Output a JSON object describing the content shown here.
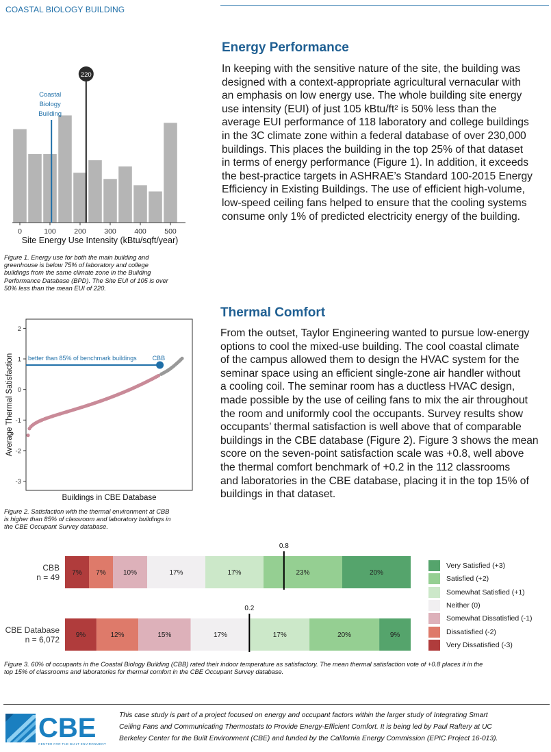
{
  "header": {
    "label": "COASTAL BIOLOGY BUILDING"
  },
  "sections": {
    "energy": {
      "heading": "Energy Performance",
      "lines": [
        "In keeping with the sensitive nature of the site, the building was",
        "designed with a context-appropriate agricultural vernacular with",
        "an emphasis on low energy use. The whole building site energy",
        "use intensity (EUI) of just 105 kBtu/ft² is 50% less than the",
        "average EUI performance of 118 laboratory and college buildings",
        "in the 3C climate zone within a federal database of over 230,000",
        "buildings. This places the building in the top 25% of that dataset",
        "in terms of energy performance (Figure 1). In addition, it exceeds",
        "the best-practice targets in ASHRAE’s Standard 100-2015 Energy",
        "Efficiency in Existing Buildings. The use of efficient high-volume,",
        "low-speed ceiling fans helped to ensure that the cooling systems",
        "consume only 1% of predicted electricity energy of the building."
      ]
    },
    "thermal": {
      "heading": "Thermal Comfort",
      "lines": [
        "From the outset, Taylor Engineering wanted to pursue low-energy",
        "options to cool the mixed-use building. The cool coastal climate",
        "of the campus allowed them to design the HVAC system for the",
        "seminar space using an efficient single-zone air handler without",
        "a cooling coil. The seminar room has a ductless HVAC design,",
        "made possible by the use of ceiling fans to mix the air throughout",
        "the room and uniformly cool the occupants. Survey results show",
        "occupants’ thermal satisfaction is well above that of comparable",
        "buildings in the CBE database (Figure 2). Figure 3 shows the mean",
        "score on the seven-point satisfaction scale was +0.8, well above",
        "the thermal comfort benchmark of +0.2 in the 112 classrooms",
        "and laboratories in the CBE database, placing it in the top 15% of",
        "buildings in that dataset."
      ]
    }
  },
  "captions": {
    "fig1": [
      "Figure 1. Energy use for both the main building and",
      "greenhouse is below 75% of laboratory and college",
      "buildings from the same climate zone in the Building",
      "Performance Database (BPD). The Site EUI of 105 is over",
      "50% less than the mean EUI of 220."
    ],
    "fig2": [
      "Figure 2. Satisfaction with the thermal environment at CBB",
      "is higher than 85% of classroom and laboratory buildings in",
      "the CBE Occupant Survey database."
    ],
    "fig3": [
      "Figure 3. 60% of occupants in the Coastal Biology Building (CBB) rated their indoor temperature as satisfactory. The mean thermal satisfaction vote of +0.8 places it in the",
      "top 15% of classrooms and laboratories for thermal comfort in the CBE Occupant Survey database."
    ]
  },
  "footer": {
    "logo_text": "CBE",
    "logo_subtext": "CENTER FOR THE BUILT ENVIRONMENT",
    "lines": [
      "This case study is part of a project focused on energy and occupant factors within the larger study of Integrating Smart",
      "Ceiling Fans and Communicating Thermostats to Provide Energy-Efficient Comfort. It is being led by Paul Raftery at UC",
      "Berkeley Center for the Built Environment (CBE) and funded by the California Energy Commission (EPIC Project 16-013)."
    ]
  },
  "chart_data": [
    {
      "type": "bar",
      "xlabel": "Site Energy Use Intensity (kBtu/sqft/year)",
      "x_ticks": [
        "0",
        "100",
        "200",
        "300",
        "400",
        "500"
      ],
      "xlim": [
        -25,
        550
      ],
      "bin_width": 50,
      "bins_start": [
        -25,
        25,
        75,
        125,
        175,
        225,
        275,
        325,
        375,
        425,
        475,
        525
      ],
      "values": [
        15,
        11,
        11,
        17.2,
        8,
        10,
        7,
        9,
        6,
        5,
        16
      ],
      "bin_starts": [
        -25,
        25,
        75,
        125,
        175,
        225,
        275,
        325,
        375,
        425,
        475
      ],
      "ylim": [
        0,
        20
      ],
      "markers": [
        {
          "label": "Coastal Biology Building",
          "label_lines": [
            "Coastal",
            "Biology",
            "Building"
          ],
          "x": 105,
          "color": "#1f6fa8"
        },
        {
          "label": "220",
          "x": 220,
          "color": "#222222"
        }
      ],
      "bar_color": "#b5b5b5"
    },
    {
      "type": "scatter",
      "xlabel": "Buildings in CBE Database",
      "ylabel": "Average Thermal Satisfaction",
      "y_ticks": [
        "-3",
        "-2",
        "-1",
        "0",
        "1",
        "2"
      ],
      "ylim": [
        -3.3,
        2.3
      ],
      "n_points": 112,
      "highlight": {
        "label": "CBB",
        "rank": 95,
        "value": 0.8,
        "color": "#1f6fa8"
      },
      "annotation": "better than 85% of benchmark buildings",
      "point_color": "#c98a98",
      "above_color": "#999999"
    },
    {
      "type": "bar",
      "stacked": true,
      "orientation": "horizontal",
      "categories": [
        "CBB",
        "CBE Database"
      ],
      "category_sublabels": [
        "n = 49",
        "n = 6,072"
      ],
      "series": [
        {
          "name": "Very Dissatisfied (-3)",
          "values": [
            7,
            9
          ],
          "color": "#b03c3c"
        },
        {
          "name": "Dissatisfied (-2)",
          "values": [
            7,
            12
          ],
          "color": "#de7a6a"
        },
        {
          "name": "Somewhat Dissatisfied (-1)",
          "values": [
            10,
            15
          ],
          "color": "#ddb1ba"
        },
        {
          "name": "Neither (0)",
          "values": [
            17,
            17
          ],
          "color": "#f1eff1"
        },
        {
          "name": "Somewhat Satisfied (+1)",
          "values": [
            17,
            17
          ],
          "color": "#cce8c9"
        },
        {
          "name": "Satisfied (+2)",
          "values": [
            23,
            20
          ],
          "color": "#95cf92"
        },
        {
          "name": "Very Satisfied (+3)",
          "values": [
            20,
            9
          ],
          "color": "#55a46c"
        }
      ],
      "data_labels": [
        [
          "7%",
          "7%",
          "10%",
          "17%",
          "17%",
          "23%",
          "20%"
        ],
        [
          "9%",
          "12%",
          "15%",
          "17%",
          "17%",
          "20%",
          "9%"
        ]
      ],
      "means": [
        {
          "label": "0.8",
          "value": 0.8
        },
        {
          "label": "0.2",
          "value": 0.2
        }
      ],
      "legend_order": [
        "Very Satisfied (+3)",
        "Satisfied (+2)",
        "Somewhat Satisfied (+1)",
        "Neither (0)",
        "Somewhat Dissatisfied (-1)",
        "Dissatisfied (-2)",
        "Very Dissatisfied (-3)"
      ],
      "legend_position": "right"
    }
  ]
}
